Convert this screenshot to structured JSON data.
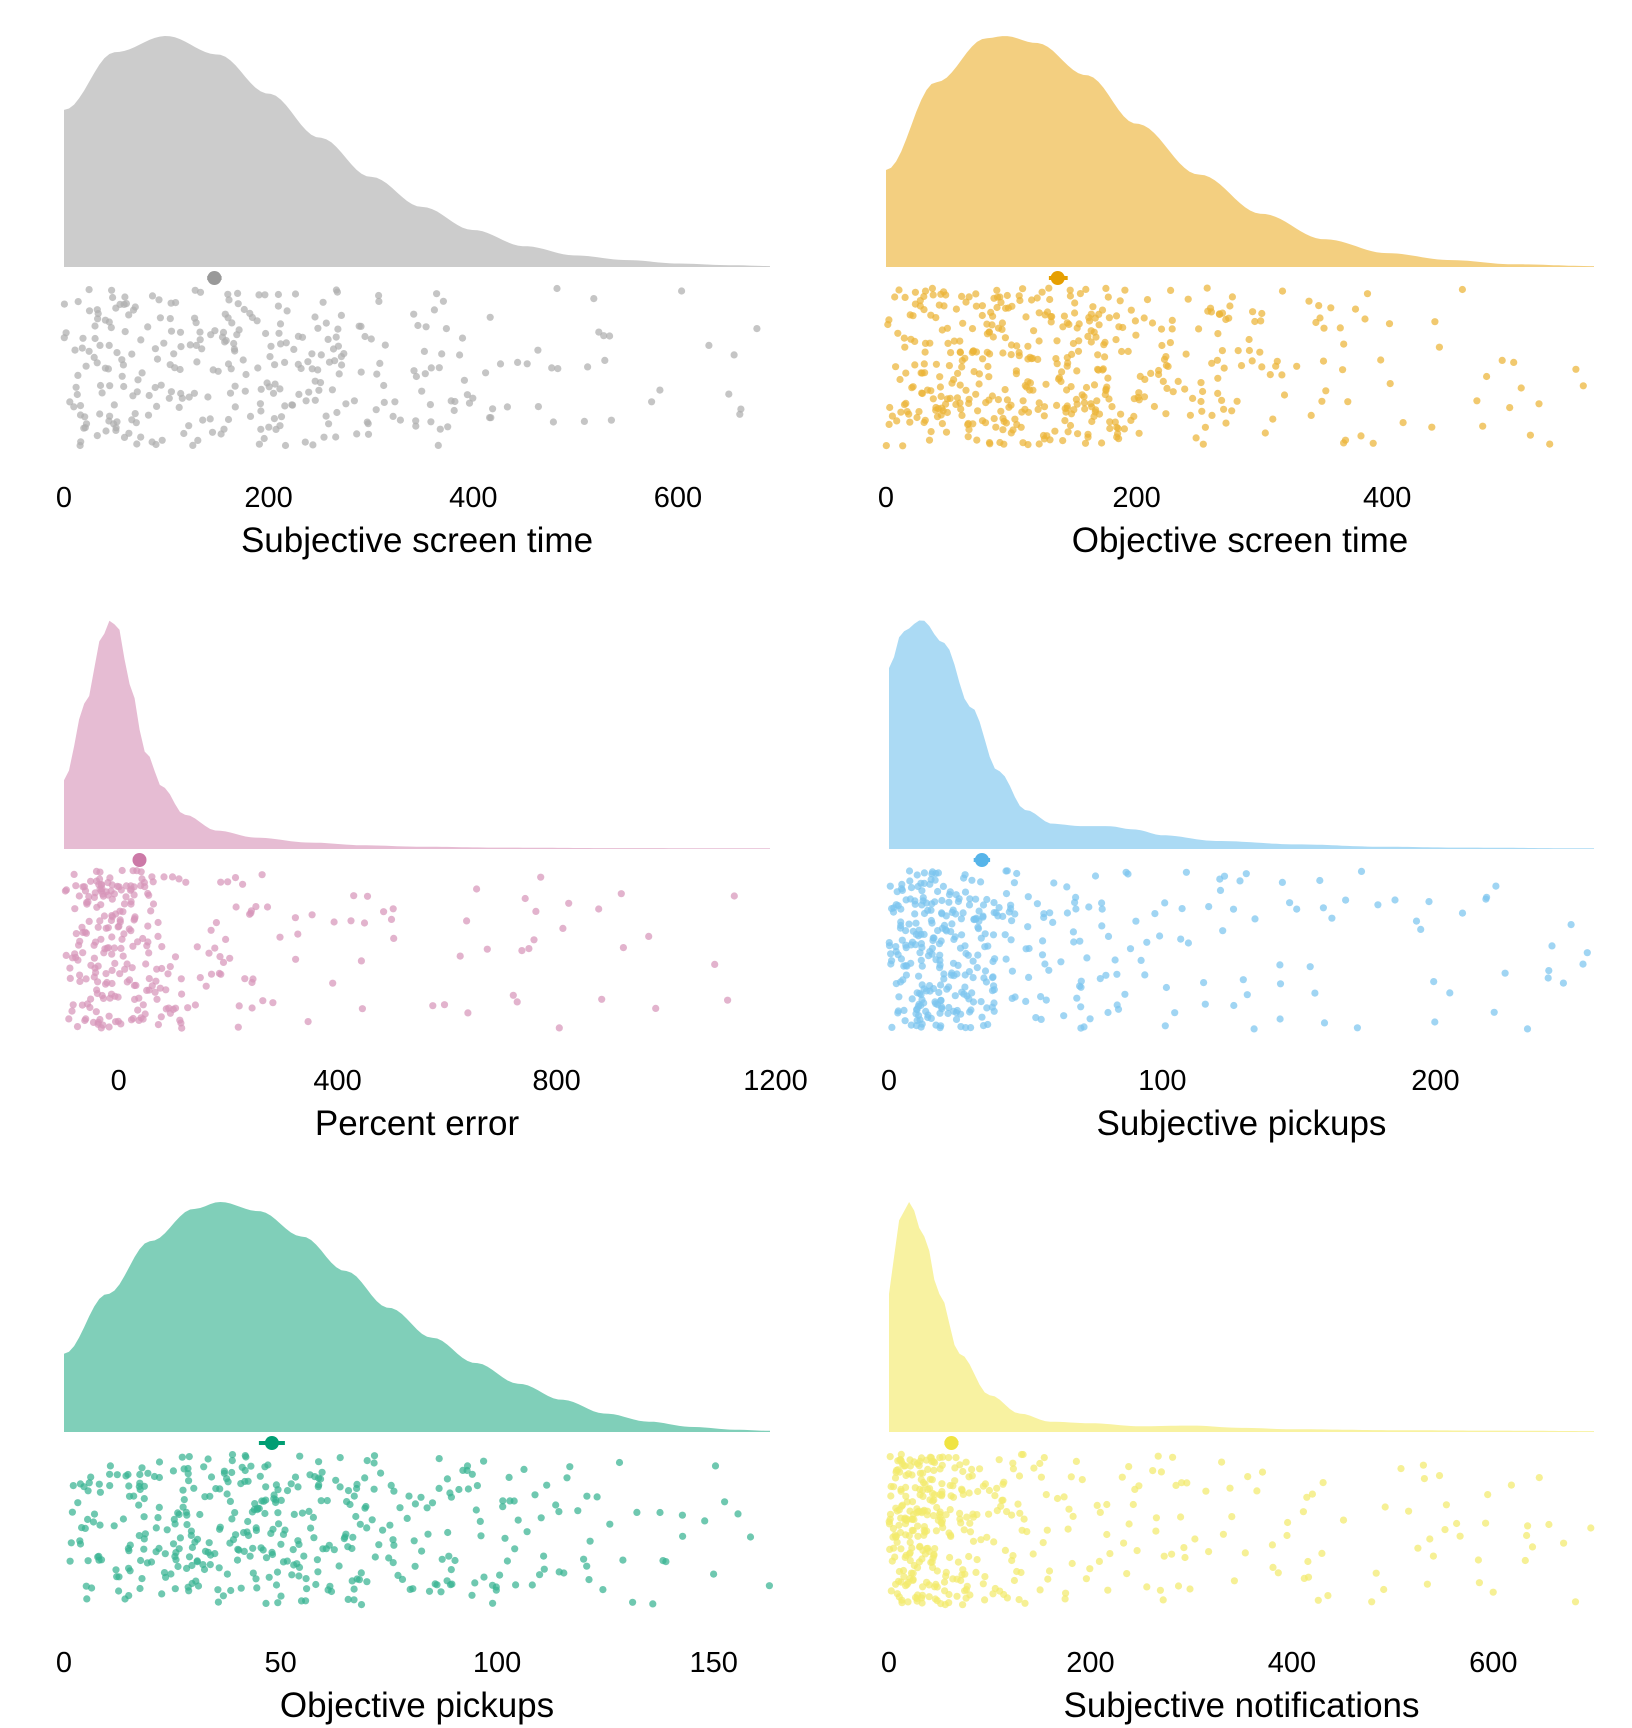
{
  "chart_data": [
    {
      "type": "raincloud",
      "xlabel": "Subjective screen time",
      "xticks": [
        0,
        200,
        400,
        600
      ],
      "xlim": [
        0,
        690
      ],
      "color": "#999999",
      "density": {
        "x": [
          0,
          50,
          100,
          150,
          200,
          250,
          300,
          350,
          400,
          450,
          500,
          550,
          600,
          650,
          690
        ],
        "y": [
          0.68,
          0.93,
          1.0,
          0.92,
          0.75,
          0.56,
          0.39,
          0.26,
          0.16,
          0.09,
          0.05,
          0.03,
          0.015,
          0.008,
          0.004
        ]
      },
      "summary": {
        "mean": 147,
        "ci": [
          140,
          154
        ]
      },
      "points": {
        "count": 330,
        "min": 0,
        "max": 690,
        "mode": 90,
        "skew": 0.28,
        "seed": 11
      }
    },
    {
      "type": "raincloud",
      "xlabel": "Objective screen time",
      "xticks": [
        0,
        200,
        400
      ],
      "xlim": [
        0,
        565
      ],
      "color": "#E69F00",
      "density": {
        "x": [
          0,
          40,
          80,
          95,
          120,
          160,
          200,
          250,
          300,
          350,
          400,
          450,
          500,
          565
        ],
        "y": [
          0.42,
          0.8,
          0.99,
          1.0,
          0.97,
          0.83,
          0.62,
          0.4,
          0.23,
          0.12,
          0.06,
          0.03,
          0.012,
          0.004
        ]
      },
      "summary": {
        "mean": 137,
        "ci": [
          130,
          145
        ]
      },
      "points": {
        "count": 480,
        "min": 0,
        "max": 565,
        "mode": 95,
        "skew": 0.3,
        "seed": 23
      }
    },
    {
      "type": "raincloud",
      "xlabel": "Percent error",
      "xticks": [
        0,
        400,
        800,
        1200
      ],
      "xlim": [
        -100,
        1190
      ],
      "color": "#CC79A7",
      "density": {
        "x": [
          -100,
          -60,
          -30,
          -15,
          0,
          20,
          50,
          80,
          120,
          180,
          250,
          350,
          450,
          550,
          700,
          900,
          1190
        ],
        "y": [
          0.3,
          0.64,
          0.93,
          1.0,
          0.96,
          0.72,
          0.42,
          0.27,
          0.15,
          0.08,
          0.05,
          0.028,
          0.016,
          0.01,
          0.006,
          0.004,
          0.003
        ]
      },
      "summary": {
        "mean": 38,
        "ci": [
          30,
          46
        ]
      },
      "points": {
        "count": 300,
        "min": -100,
        "max": 1190,
        "mode": -20,
        "skew": 0.12,
        "seed": 37
      }
    },
    {
      "type": "raincloud",
      "xlabel": "Subjective pickups",
      "xticks": [
        0,
        100,
        200
      ],
      "xlim": [
        0,
        258
      ],
      "color": "#56B4E9",
      "density": {
        "x": [
          0,
          5,
          12,
          20,
          30,
          40,
          50,
          60,
          70,
          80,
          90,
          100,
          120,
          150,
          180,
          210,
          258
        ],
        "y": [
          0.79,
          0.95,
          1.0,
          0.9,
          0.62,
          0.34,
          0.17,
          0.11,
          0.1,
          0.1,
          0.085,
          0.06,
          0.035,
          0.02,
          0.01,
          0.006,
          0.003
        ]
      },
      "summary": {
        "mean": 34,
        "ci": [
          31,
          37
        ]
      },
      "points": {
        "count": 400,
        "min": 0,
        "max": 258,
        "mode": 12,
        "skew": 0.1,
        "seed": 41
      }
    },
    {
      "type": "raincloud",
      "xlabel": "Objective pickups",
      "xticks": [
        0,
        50,
        100,
        150
      ],
      "xlim": [
        0,
        163
      ],
      "color": "#009E73",
      "density": {
        "x": [
          0,
          10,
          20,
          30,
          36,
          45,
          55,
          65,
          75,
          85,
          95,
          105,
          115,
          125,
          135,
          145,
          155,
          163
        ],
        "y": [
          0.34,
          0.6,
          0.83,
          0.97,
          1.0,
          0.96,
          0.85,
          0.7,
          0.54,
          0.41,
          0.3,
          0.21,
          0.14,
          0.08,
          0.045,
          0.022,
          0.01,
          0.005
        ]
      },
      "summary": {
        "mean": 48,
        "ci": [
          45,
          51
        ]
      },
      "points": {
        "count": 420,
        "min": 0,
        "max": 163,
        "mode": 36,
        "skew": 0.4,
        "seed": 53
      }
    },
    {
      "type": "raincloud",
      "xlabel": "Subjective notifications",
      "xticks": [
        0,
        200,
        400,
        600
      ],
      "xlim": [
        0,
        700
      ],
      "color": "#F0E442",
      "density": {
        "x": [
          0,
          10,
          20,
          35,
          50,
          70,
          100,
          130,
          160,
          200,
          250,
          300,
          350,
          400,
          500,
          600,
          700
        ],
        "y": [
          0.6,
          0.92,
          1.0,
          0.85,
          0.6,
          0.34,
          0.16,
          0.08,
          0.045,
          0.038,
          0.025,
          0.028,
          0.018,
          0.012,
          0.008,
          0.006,
          0.004
        ]
      },
      "summary": {
        "mean": 62,
        "ci": [
          55,
          69
        ]
      },
      "points": {
        "count": 420,
        "min": 0,
        "max": 700,
        "mode": 15,
        "skew": 0.1,
        "seed": 67
      }
    }
  ]
}
